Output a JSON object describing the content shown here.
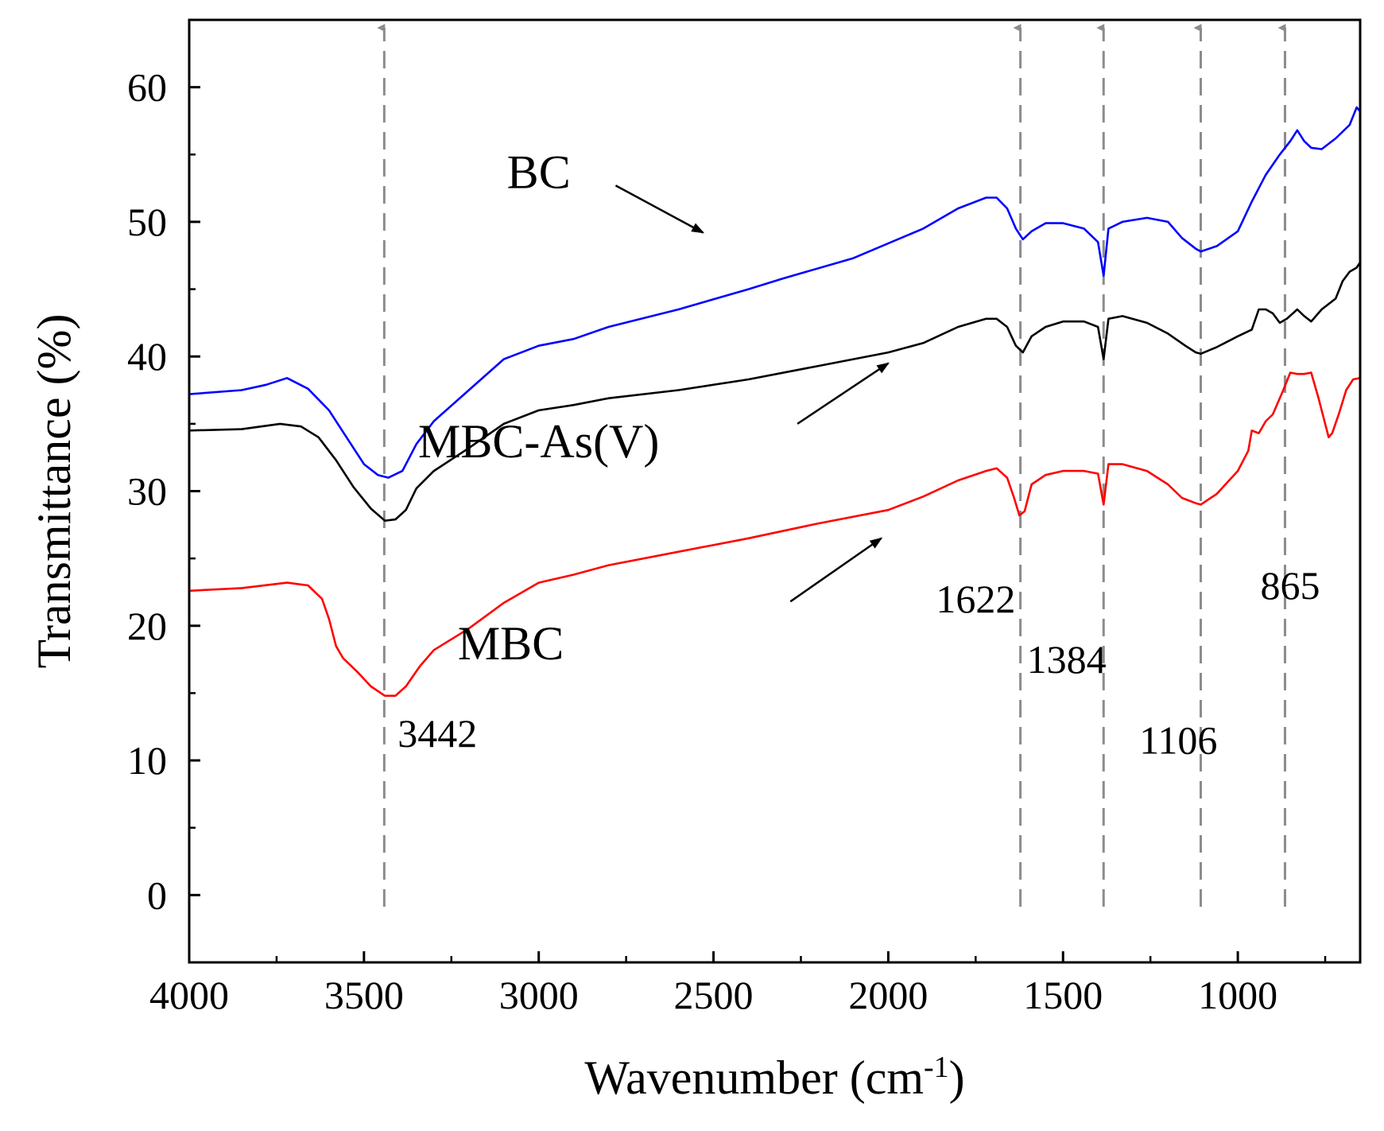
{
  "chart_data": {
    "type": "line",
    "title": "",
    "xlabel": "Wavenumber (cm",
    "xlabel_sup": "-1",
    "xlabel_tail": ")",
    "ylabel": "Transmittance (%)",
    "xlim": [
      4000,
      650
    ],
    "ylim": [
      -5,
      65
    ],
    "x_ticks": [
      4000,
      3500,
      3000,
      2500,
      2000,
      1500,
      1000
    ],
    "y_ticks": [
      0,
      10,
      20,
      30,
      40,
      50,
      60
    ],
    "series": [
      {
        "name": "BC",
        "color": "#0000ff",
        "points": [
          [
            4000,
            37.2
          ],
          [
            3850,
            37.5
          ],
          [
            3780,
            37.9
          ],
          [
            3720,
            38.4
          ],
          [
            3660,
            37.6
          ],
          [
            3600,
            36.0
          ],
          [
            3550,
            34.0
          ],
          [
            3500,
            32.0
          ],
          [
            3460,
            31.2
          ],
          [
            3430,
            31.0
          ],
          [
            3390,
            31.5
          ],
          [
            3350,
            33.5
          ],
          [
            3300,
            35.2
          ],
          [
            3200,
            37.5
          ],
          [
            3100,
            39.8
          ],
          [
            3000,
            40.8
          ],
          [
            2900,
            41.3
          ],
          [
            2800,
            42.2
          ],
          [
            2600,
            43.5
          ],
          [
            2400,
            45.0
          ],
          [
            2300,
            45.8
          ],
          [
            2100,
            47.3
          ],
          [
            1900,
            49.5
          ],
          [
            1800,
            51.0
          ],
          [
            1720,
            51.8
          ],
          [
            1690,
            51.8
          ],
          [
            1660,
            51.0
          ],
          [
            1635,
            49.5
          ],
          [
            1615,
            48.7
          ],
          [
            1590,
            49.3
          ],
          [
            1550,
            49.9
          ],
          [
            1500,
            49.9
          ],
          [
            1440,
            49.5
          ],
          [
            1400,
            48.5
          ],
          [
            1384,
            46.0
          ],
          [
            1370,
            49.5
          ],
          [
            1330,
            50.0
          ],
          [
            1260,
            50.3
          ],
          [
            1200,
            50.0
          ],
          [
            1160,
            48.8
          ],
          [
            1120,
            48.0
          ],
          [
            1106,
            47.8
          ],
          [
            1060,
            48.2
          ],
          [
            1000,
            49.3
          ],
          [
            960,
            51.5
          ],
          [
            920,
            53.5
          ],
          [
            880,
            55.0
          ],
          [
            850,
            56.0
          ],
          [
            830,
            56.8
          ],
          [
            810,
            56.0
          ],
          [
            790,
            55.5
          ],
          [
            760,
            55.4
          ],
          [
            720,
            56.2
          ],
          [
            680,
            57.2
          ],
          [
            660,
            58.5
          ],
          [
            650,
            58.2
          ]
        ]
      },
      {
        "name": "MBC-As(V)",
        "color": "#000000",
        "points": [
          [
            4000,
            34.5
          ],
          [
            3850,
            34.6
          ],
          [
            3740,
            35.0
          ],
          [
            3680,
            34.8
          ],
          [
            3630,
            34.0
          ],
          [
            3580,
            32.3
          ],
          [
            3530,
            30.3
          ],
          [
            3480,
            28.7
          ],
          [
            3440,
            27.8
          ],
          [
            3410,
            27.9
          ],
          [
            3380,
            28.6
          ],
          [
            3350,
            30.2
          ],
          [
            3300,
            31.5
          ],
          [
            3200,
            33.2
          ],
          [
            3100,
            35.0
          ],
          [
            3000,
            36.0
          ],
          [
            2900,
            36.4
          ],
          [
            2800,
            36.9
          ],
          [
            2600,
            37.5
          ],
          [
            2400,
            38.3
          ],
          [
            2200,
            39.3
          ],
          [
            2000,
            40.3
          ],
          [
            1900,
            41.0
          ],
          [
            1800,
            42.2
          ],
          [
            1720,
            42.8
          ],
          [
            1690,
            42.8
          ],
          [
            1660,
            42.2
          ],
          [
            1635,
            40.8
          ],
          [
            1615,
            40.3
          ],
          [
            1590,
            41.5
          ],
          [
            1550,
            42.2
          ],
          [
            1500,
            42.6
          ],
          [
            1440,
            42.6
          ],
          [
            1400,
            42.2
          ],
          [
            1384,
            39.8
          ],
          [
            1370,
            42.8
          ],
          [
            1330,
            43.0
          ],
          [
            1260,
            42.5
          ],
          [
            1200,
            41.7
          ],
          [
            1150,
            40.8
          ],
          [
            1120,
            40.3
          ],
          [
            1106,
            40.2
          ],
          [
            1060,
            40.7
          ],
          [
            1000,
            41.5
          ],
          [
            960,
            42.0
          ],
          [
            940,
            43.5
          ],
          [
            920,
            43.5
          ],
          [
            900,
            43.2
          ],
          [
            880,
            42.5
          ],
          [
            860,
            42.8
          ],
          [
            830,
            43.5
          ],
          [
            810,
            43.0
          ],
          [
            790,
            42.6
          ],
          [
            760,
            43.5
          ],
          [
            720,
            44.3
          ],
          [
            700,
            45.6
          ],
          [
            680,
            46.3
          ],
          [
            660,
            46.6
          ],
          [
            650,
            47.0
          ]
        ]
      },
      {
        "name": "MBC",
        "color": "#ff0000",
        "points": [
          [
            4000,
            22.6
          ],
          [
            3850,
            22.8
          ],
          [
            3720,
            23.2
          ],
          [
            3660,
            23.0
          ],
          [
            3620,
            22.0
          ],
          [
            3600,
            20.5
          ],
          [
            3580,
            18.5
          ],
          [
            3560,
            17.6
          ],
          [
            3520,
            16.6
          ],
          [
            3480,
            15.5
          ],
          [
            3440,
            14.8
          ],
          [
            3410,
            14.8
          ],
          [
            3380,
            15.5
          ],
          [
            3340,
            17.0
          ],
          [
            3300,
            18.2
          ],
          [
            3200,
            19.8
          ],
          [
            3100,
            21.7
          ],
          [
            3000,
            23.2
          ],
          [
            2900,
            23.8
          ],
          [
            2800,
            24.5
          ],
          [
            2600,
            25.5
          ],
          [
            2400,
            26.5
          ],
          [
            2200,
            27.6
          ],
          [
            2000,
            28.6
          ],
          [
            1900,
            29.6
          ],
          [
            1800,
            30.8
          ],
          [
            1720,
            31.5
          ],
          [
            1690,
            31.7
          ],
          [
            1660,
            31.0
          ],
          [
            1640,
            29.5
          ],
          [
            1625,
            28.2
          ],
          [
            1610,
            28.5
          ],
          [
            1590,
            30.5
          ],
          [
            1550,
            31.2
          ],
          [
            1500,
            31.5
          ],
          [
            1440,
            31.5
          ],
          [
            1400,
            31.3
          ],
          [
            1384,
            29.0
          ],
          [
            1370,
            32.0
          ],
          [
            1330,
            32.0
          ],
          [
            1260,
            31.5
          ],
          [
            1200,
            30.5
          ],
          [
            1160,
            29.5
          ],
          [
            1120,
            29.1
          ],
          [
            1106,
            29.0
          ],
          [
            1060,
            29.8
          ],
          [
            1000,
            31.5
          ],
          [
            970,
            33.0
          ],
          [
            960,
            34.5
          ],
          [
            940,
            34.3
          ],
          [
            920,
            35.2
          ],
          [
            900,
            35.7
          ],
          [
            870,
            37.5
          ],
          [
            850,
            38.8
          ],
          [
            830,
            38.7
          ],
          [
            810,
            38.7
          ],
          [
            790,
            38.8
          ],
          [
            770,
            37.0
          ],
          [
            760,
            36.0
          ],
          [
            740,
            34.0
          ],
          [
            730,
            34.3
          ],
          [
            710,
            35.8
          ],
          [
            690,
            37.5
          ],
          [
            670,
            38.3
          ],
          [
            650,
            38.4
          ]
        ]
      }
    ],
    "series_labels": [
      {
        "text": "BC",
        "x": 3000,
        "y": 52.5,
        "arrow_from": [
          2780,
          52.7
        ],
        "arrow_to": [
          2530,
          49.2
        ]
      },
      {
        "text": "MBC-As(V)",
        "x": 3000,
        "y": 32.5,
        "arrow_from": [
          2260,
          35.0
        ],
        "arrow_to": [
          2000,
          39.5
        ]
      },
      {
        "text": "MBC",
        "x": 3080,
        "y": 17.5,
        "arrow_from": [
          2280,
          21.8
        ],
        "arrow_to": [
          2020,
          26.5
        ]
      }
    ],
    "marker_lines": [
      {
        "x": 3442,
        "label": "3442",
        "label_x": 3290,
        "label_y": 11.0
      },
      {
        "x": 1622,
        "label": "1622",
        "label_x": 1750,
        "label_y": 21.0
      },
      {
        "x": 1384,
        "label": "1384",
        "label_x": 1490,
        "label_y": 16.5
      },
      {
        "x": 1106,
        "label": "1106",
        "label_x": 1170,
        "label_y": 10.5
      },
      {
        "x": 865,
        "label": "865",
        "label_x": 850,
        "label_y": 22.0
      }
    ]
  }
}
